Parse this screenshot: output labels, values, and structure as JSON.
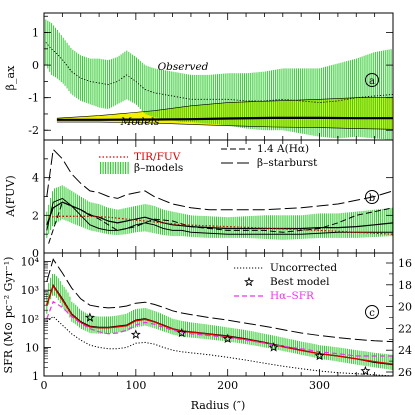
{
  "chart_data": [
    {
      "id": "a",
      "type": "line",
      "panel_label": "a",
      "ylabel": "β_ax",
      "ylim": [
        -2.3,
        1.6
      ],
      "yticks": [
        "-2",
        "-1",
        "0",
        "1"
      ],
      "annotations": [
        "Observed",
        "Models"
      ],
      "colors": {
        "observed_band": "#33cc33",
        "model_band": "#f2f200",
        "line": "#000000"
      },
      "series": [
        {
          "style": "dotted",
          "x": [
            2,
            8,
            14,
            22,
            30,
            40,
            50,
            60,
            70,
            80,
            90,
            100,
            110,
            120,
            130,
            140,
            150,
            160,
            180,
            200,
            220,
            240,
            260,
            280,
            300,
            320,
            340,
            360,
            380
          ],
          "value": [
            0.7,
            0.5,
            0.35,
            0.1,
            -0.2,
            -0.4,
            -0.5,
            -0.55,
            -0.6,
            -0.5,
            -0.3,
            -0.5,
            -0.75,
            -0.85,
            -0.9,
            -0.95,
            -1.0,
            -1.05,
            -1.05,
            -1.05,
            -1.1,
            -1.1,
            -1.05,
            -1.1,
            -1.15,
            -1.1,
            -1.0,
            -0.95,
            -0.9
          ],
          "low": [
            0.0,
            -0.3,
            -0.4,
            -0.6,
            -0.9,
            -1.1,
            -1.2,
            -1.3,
            -1.35,
            -1.2,
            -1.05,
            -1.2,
            -1.5,
            -1.6,
            -1.65,
            -1.7,
            -1.75,
            -1.75,
            -1.8,
            -1.85,
            -1.95,
            -2.0,
            -2.0,
            -2.1,
            -2.2,
            -2.25,
            -2.2,
            -2.25,
            -2.3
          ],
          "high": [
            1.4,
            1.3,
            1.1,
            0.8,
            0.5,
            0.3,
            0.2,
            0.2,
            0.15,
            0.25,
            0.45,
            0.25,
            0.0,
            -0.1,
            -0.15,
            -0.2,
            -0.25,
            -0.3,
            -0.3,
            -0.25,
            -0.25,
            -0.2,
            -0.1,
            -0.1,
            -0.1,
            0.05,
            0.2,
            0.4,
            0.5
          ]
        },
        {
          "style": "solid",
          "x": [
            14,
            60,
            120,
            160,
            200,
            250,
            300,
            340,
            380
          ],
          "value": [
            -1.68,
            -1.68,
            -1.67,
            -1.66,
            -1.64,
            -1.62,
            -1.62,
            -1.63,
            -1.63
          ],
          "low": [
            -1.75,
            -1.75,
            -1.78,
            -1.82,
            -1.86,
            -1.9,
            -1.92,
            -1.95,
            -1.97
          ],
          "high": [
            -1.63,
            -1.55,
            -1.4,
            -1.25,
            -1.15,
            -1.1,
            -1.05,
            -1.0,
            -1.0
          ]
        }
      ]
    },
    {
      "id": "b",
      "type": "line",
      "panel_label": "b",
      "ylabel": "A(FUV)",
      "ylim": [
        0,
        6
      ],
      "yticks": [
        "0",
        "2",
        "4"
      ],
      "colors": {
        "tir_fuv": "#dd0000",
        "band": "#33cc33",
        "line": "#000000"
      },
      "legend": [
        {
          "label": "TIR/FUV",
          "style": "dotted-red"
        },
        {
          "label": "β–models",
          "style": "band"
        },
        {
          "label": "1.4 A(Hα)",
          "style": "short-dash"
        },
        {
          "label": "β–starburst",
          "style": "long-dash"
        }
      ],
      "series": [
        {
          "label": "TIR/FUV",
          "x": [
            5,
            15,
            30,
            50,
            70,
            90,
            110,
            130,
            150,
            200,
            250,
            300,
            340,
            380
          ],
          "y": [
            1.9,
            1.95,
            1.95,
            1.95,
            1.9,
            1.8,
            1.7,
            1.6,
            1.5,
            1.4,
            1.3,
            1.2,
            1.1,
            1.0
          ]
        },
        {
          "label": "β–models",
          "x": [
            3,
            10,
            20,
            30,
            40,
            50,
            60,
            70,
            80,
            90,
            100,
            110,
            120,
            130,
            140,
            150,
            160,
            180,
            200,
            220,
            240,
            260,
            280,
            300,
            320,
            340,
            360,
            380
          ],
          "y": [
            1.5,
            2.4,
            2.7,
            2.5,
            2.3,
            2.0,
            1.9,
            1.7,
            1.6,
            1.7,
            1.8,
            1.9,
            1.75,
            1.6,
            1.5,
            1.45,
            1.4,
            1.35,
            1.3,
            1.3,
            1.3,
            1.3,
            1.3,
            1.35,
            1.35,
            1.4,
            1.5,
            1.6
          ],
          "low": [
            0.8,
            1.5,
            1.8,
            1.6,
            1.4,
            1.2,
            1.1,
            1.0,
            0.95,
            1.0,
            1.1,
            1.15,
            1.05,
            0.95,
            0.9,
            0.9,
            0.85,
            0.8,
            0.8,
            0.8,
            0.75,
            0.7,
            0.75,
            0.8,
            0.8,
            0.8,
            0.85,
            0.9
          ],
          "high": [
            2.2,
            3.4,
            3.6,
            3.3,
            3.0,
            2.7,
            2.6,
            2.4,
            2.3,
            2.4,
            2.5,
            2.6,
            2.5,
            2.3,
            2.2,
            2.1,
            2.0,
            1.95,
            1.9,
            1.95,
            2.0,
            2.0,
            2.0,
            2.1,
            2.1,
            2.2,
            2.3,
            2.4
          ]
        },
        {
          "label": "1.4 A(Hα)",
          "x": [
            5,
            20,
            40,
            60,
            80,
            100,
            120,
            140,
            160,
            180,
            200,
            220,
            240,
            260,
            280,
            300,
            320,
            340,
            360,
            380
          ],
          "y": [
            0.5,
            2.7,
            2.3,
            1.8,
            1.2,
            1.4,
            1.8,
            1.7,
            1.4,
            1.3,
            1.2,
            1.2,
            1.2,
            1.1,
            1.2,
            1.3,
            1.6,
            2.0,
            2.2,
            2.4
          ]
        },
        {
          "label": "β–starburst",
          "x": [
            3,
            10,
            20,
            30,
            40,
            50,
            60,
            70,
            80,
            90,
            100,
            110,
            120,
            130,
            140,
            150,
            160,
            180,
            200,
            220,
            240,
            260,
            280,
            300,
            320,
            340,
            360,
            380
          ],
          "y": [
            3.0,
            5.5,
            5.0,
            4.2,
            3.7,
            3.3,
            3.2,
            3.0,
            2.9,
            3.1,
            3.2,
            3.3,
            3.0,
            2.8,
            2.6,
            2.5,
            2.4,
            2.3,
            2.3,
            2.3,
            2.3,
            2.35,
            2.4,
            2.5,
            2.6,
            2.8,
            3.0,
            3.3
          ]
        },
        {
          "label": "",
          "x": [
            3,
            10,
            20,
            30,
            40,
            50,
            60,
            70,
            80,
            90,
            100,
            110,
            120,
            130,
            140,
            150,
            160,
            180,
            200,
            220,
            240,
            260,
            280,
            300,
            320,
            340,
            360,
            380
          ],
          "y": [
            1.2,
            2.7,
            2.9,
            2.5,
            2.0,
            1.5,
            1.3,
            1.2,
            1.2,
            1.3,
            1.5,
            1.6,
            1.5,
            1.3,
            1.2,
            1.2,
            1.1,
            1.05,
            1.0,
            1.0,
            1.0,
            1.0,
            1.0,
            1.05,
            1.1,
            1.1,
            1.1,
            1.1
          ]
        }
      ]
    },
    {
      "id": "c",
      "type": "line",
      "panel_label": "c",
      "ylabel": "SFR (M⊙ pc⁻² Gyr⁻¹)",
      "xlabel": "Radius (″)",
      "yscale": "log",
      "ylim": [
        1,
        20000
      ],
      "yticks": [
        "1",
        "10",
        "10²",
        "10³",
        "10⁴"
      ],
      "y2ticks": [
        "16",
        "18",
        "20",
        "22",
        "24",
        "26"
      ],
      "xlim": [
        0,
        380
      ],
      "xticks": [
        "0",
        "100",
        "200",
        "300"
      ],
      "colors": {
        "best": "#000000",
        "halpha": "#ee33ee",
        "red": "#dd0000",
        "band": "#33cc33"
      },
      "legend": [
        {
          "label": "Uncorrected",
          "style": "dotted"
        },
        {
          "label": "Best model",
          "style": "star"
        },
        {
          "label": "Hα–SFR",
          "style": "magenta-dash"
        }
      ],
      "series": [
        {
          "label": "β–models",
          "x": [
            3,
            10,
            20,
            30,
            40,
            50,
            60,
            70,
            80,
            90,
            100,
            110,
            120,
            130,
            140,
            150,
            160,
            180,
            200,
            220,
            240,
            260,
            280,
            300,
            320,
            340,
            360,
            380
          ],
          "y": [
            300,
            1500,
            500,
            150,
            80,
            55,
            50,
            50,
            55,
            60,
            90,
            100,
            80,
            60,
            45,
            38,
            35,
            30,
            25,
            20,
            15,
            11,
            8,
            6,
            5,
            4,
            3,
            2.5
          ],
          "low": [
            150,
            700,
            250,
            80,
            45,
            32,
            30,
            30,
            33,
            36,
            50,
            58,
            47,
            36,
            28,
            24,
            22,
            19,
            16,
            13,
            10,
            7.5,
            5.5,
            4,
            3.2,
            2.5,
            2,
            1.6
          ],
          "high": [
            800,
            4000,
            1500,
            400,
            200,
            130,
            120,
            120,
            130,
            150,
            220,
            240,
            190,
            140,
            100,
            85,
            75,
            62,
            50,
            40,
            30,
            22,
            16,
            12,
            10,
            8,
            6.5,
            5.5
          ]
        },
        {
          "label": "TIR/FUV",
          "x": [
            3,
            10,
            20,
            30,
            40,
            50,
            60,
            70,
            80,
            90,
            100,
            110,
            120,
            130,
            140,
            150,
            160,
            180,
            200,
            220,
            240,
            260,
            280,
            300,
            320,
            340,
            360,
            380
          ],
          "y": [
            300,
            1400,
            450,
            140,
            75,
            52,
            48,
            48,
            52,
            57,
            85,
            95,
            78,
            58,
            44,
            37,
            34,
            29,
            24,
            19,
            14.5,
            10.5,
            7.8,
            6,
            5,
            4,
            3.2,
            2.6
          ]
        },
        {
          "label": "β–starburst",
          "x": [
            3,
            10,
            20,
            30,
            40,
            50,
            60,
            70,
            80,
            90,
            100,
            110,
            120,
            130,
            140,
            150,
            160,
            180,
            200,
            220,
            240,
            260,
            280,
            300,
            320,
            340,
            360,
            380
          ],
          "y": [
            2000,
            12000,
            4000,
            1200,
            500,
            300,
            260,
            240,
            250,
            280,
            350,
            380,
            320,
            250,
            190,
            160,
            140,
            110,
            90,
            70,
            55,
            42,
            32,
            26,
            22,
            19,
            17,
            16
          ]
        },
        {
          "label": "Uncorrected",
          "x": [
            3,
            10,
            20,
            30,
            40,
            50,
            60,
            70,
            80,
            90,
            100,
            110,
            120,
            130,
            140,
            150,
            160,
            180,
            200,
            220,
            240,
            260,
            280,
            300,
            320,
            340,
            360,
            380
          ],
          "y": [
            80,
            120,
            60,
            30,
            18,
            12,
            10,
            9,
            9,
            10,
            14,
            15,
            13,
            10,
            8,
            7,
            6.5,
            5.5,
            4.5,
            3.6,
            2.8,
            2.2,
            1.8,
            1.5,
            1.3,
            1.2,
            1.1,
            1.0
          ]
        },
        {
          "label": "Hα–SFR",
          "x": [
            3,
            10,
            20,
            30,
            40,
            50,
            60,
            70,
            80,
            90,
            100,
            110,
            120,
            130,
            140,
            150,
            160,
            180,
            200,
            220,
            240,
            260,
            280,
            300,
            320,
            340,
            360,
            380
          ],
          "y": [
            100,
            400,
            250,
            120,
            70,
            45,
            35,
            30,
            32,
            40,
            60,
            75,
            65,
            50,
            40,
            34,
            30,
            26,
            22,
            18,
            14,
            11,
            9,
            7,
            6,
            5,
            5,
            5
          ]
        },
        {
          "label": "Best model",
          "type": "scatter",
          "x": [
            50,
            100,
            150,
            200,
            250,
            300,
            350
          ],
          "y": [
            110,
            28,
            32,
            20,
            10,
            5,
            1.5
          ]
        }
      ]
    }
  ]
}
